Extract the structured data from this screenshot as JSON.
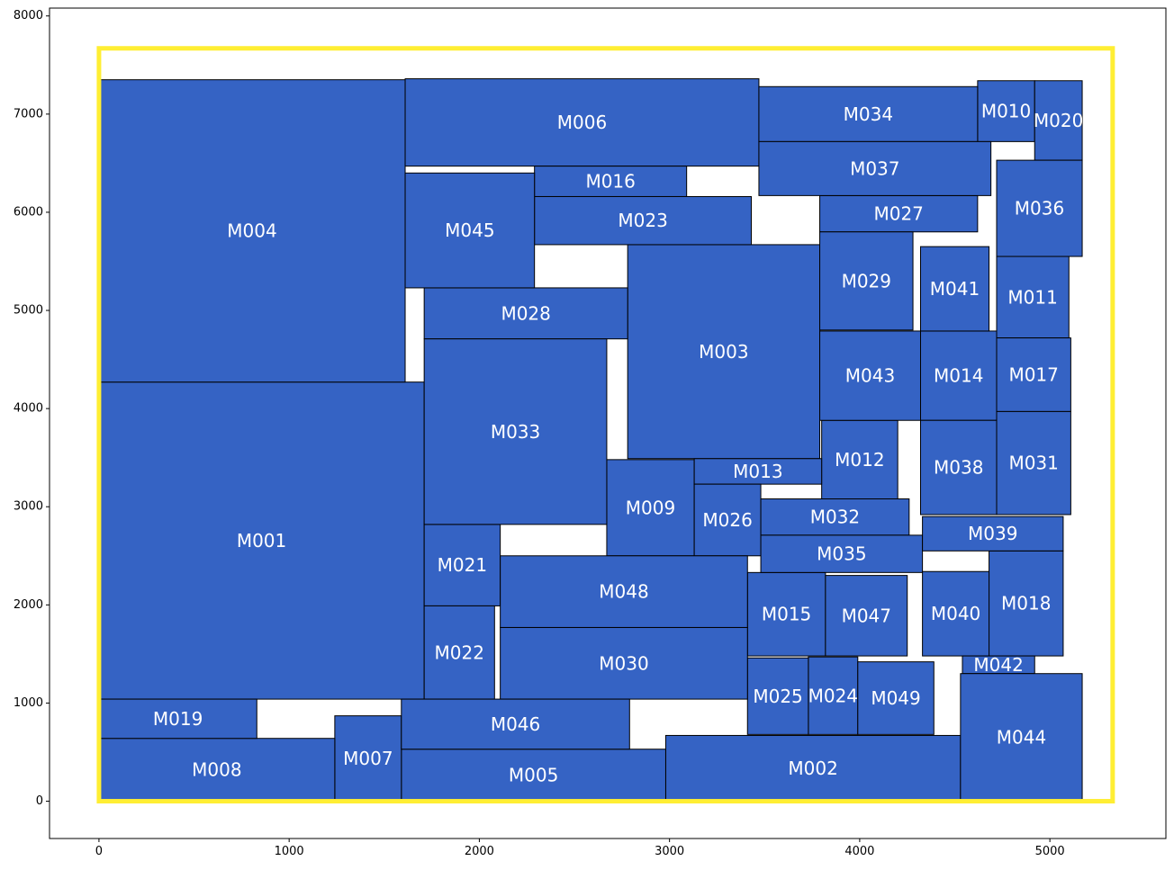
{
  "chart_data": {
    "type": "floorplan-rectangles",
    "xlim": [
      -260,
      5610
    ],
    "ylim": [
      -380,
      8080
    ],
    "xticks": [
      0,
      1000,
      2000,
      3000,
      4000,
      5000
    ],
    "yticks": [
      0,
      1000,
      2000,
      3000,
      4000,
      5000,
      6000,
      7000,
      8000
    ],
    "outline": {
      "x0": 0,
      "y0": 0,
      "x1": 5330,
      "y1": 7670,
      "color": "#ffee33"
    },
    "block_color": "#3563c4",
    "edge_color": "#000000",
    "label_color": "#ffffff",
    "blocks": [
      {
        "name": "M001",
        "x0": 0,
        "y0": 1040,
        "x1": 1710,
        "y1": 4270
      },
      {
        "name": "M002",
        "x0": 2980,
        "y0": 0,
        "x1": 4530,
        "y1": 670
      },
      {
        "name": "M003",
        "x0": 2780,
        "y0": 3490,
        "x1": 3790,
        "y1": 5670
      },
      {
        "name": "M004",
        "x0": 0,
        "y0": 4270,
        "x1": 1610,
        "y1": 7350
      },
      {
        "name": "M005",
        "x0": 1590,
        "y0": 0,
        "x1": 2980,
        "y1": 530
      },
      {
        "name": "M006",
        "x0": 1610,
        "y0": 6470,
        "x1": 3470,
        "y1": 7360
      },
      {
        "name": "M007",
        "x0": 1240,
        "y0": 0,
        "x1": 1590,
        "y1": 870
      },
      {
        "name": "M008",
        "x0": 0,
        "y0": 0,
        "x1": 1240,
        "y1": 640
      },
      {
        "name": "M009",
        "x0": 2670,
        "y0": 2500,
        "x1": 3130,
        "y1": 3480
      },
      {
        "name": "M010",
        "x0": 4620,
        "y0": 6720,
        "x1": 4920,
        "y1": 7340
      },
      {
        "name": "M011",
        "x0": 4720,
        "y0": 4720,
        "x1": 5100,
        "y1": 5550
      },
      {
        "name": "M012",
        "x0": 3800,
        "y0": 3080,
        "x1": 4200,
        "y1": 3880
      },
      {
        "name": "M013",
        "x0": 3130,
        "y0": 3230,
        "x1": 3800,
        "y1": 3490
      },
      {
        "name": "M014",
        "x0": 4320,
        "y0": 3880,
        "x1": 4720,
        "y1": 4790
      },
      {
        "name": "M015",
        "x0": 3410,
        "y0": 1480,
        "x1": 3820,
        "y1": 2330
      },
      {
        "name": "M016",
        "x0": 2290,
        "y0": 6160,
        "x1": 3090,
        "y1": 6470
      },
      {
        "name": "M017",
        "x0": 4720,
        "y0": 3970,
        "x1": 5110,
        "y1": 4720
      },
      {
        "name": "M018",
        "x0": 4680,
        "y0": 1480,
        "x1": 5070,
        "y1": 2550
      },
      {
        "name": "M019",
        "x0": 0,
        "y0": 640,
        "x1": 830,
        "y1": 1040
      },
      {
        "name": "M020",
        "x0": 4920,
        "y0": 6530,
        "x1": 5170,
        "y1": 7340
      },
      {
        "name": "M021",
        "x0": 1710,
        "y0": 1990,
        "x1": 2110,
        "y1": 2820
      },
      {
        "name": "M022",
        "x0": 1710,
        "y0": 1040,
        "x1": 2080,
        "y1": 1990
      },
      {
        "name": "M023",
        "x0": 2290,
        "y0": 5670,
        "x1": 3430,
        "y1": 6160
      },
      {
        "name": "M024",
        "x0": 3730,
        "y0": 680,
        "x1": 3990,
        "y1": 1470
      },
      {
        "name": "M025",
        "x0": 3410,
        "y0": 680,
        "x1": 3730,
        "y1": 1460
      },
      {
        "name": "M026",
        "x0": 3130,
        "y0": 2500,
        "x1": 3480,
        "y1": 3230
      },
      {
        "name": "M027",
        "x0": 3790,
        "y0": 5800,
        "x1": 4620,
        "y1": 6170
      },
      {
        "name": "M028",
        "x0": 1710,
        "y0": 4710,
        "x1": 2780,
        "y1": 5230
      },
      {
        "name": "M029",
        "x0": 3790,
        "y0": 4800,
        "x1": 4280,
        "y1": 5800
      },
      {
        "name": "M030",
        "x0": 2110,
        "y0": 1040,
        "x1": 3410,
        "y1": 1770
      },
      {
        "name": "M031",
        "x0": 4720,
        "y0": 2920,
        "x1": 5110,
        "y1": 3970
      },
      {
        "name": "M032",
        "x0": 3480,
        "y0": 2710,
        "x1": 4260,
        "y1": 3080
      },
      {
        "name": "M033",
        "x0": 1710,
        "y0": 2820,
        "x1": 2670,
        "y1": 4710
      },
      {
        "name": "M034",
        "x0": 3470,
        "y0": 6720,
        "x1": 4620,
        "y1": 7280
      },
      {
        "name": "M035",
        "x0": 3480,
        "y0": 2330,
        "x1": 4330,
        "y1": 2710
      },
      {
        "name": "M036",
        "x0": 4720,
        "y0": 5550,
        "x1": 5170,
        "y1": 6530
      },
      {
        "name": "M037",
        "x0": 3470,
        "y0": 6170,
        "x1": 4690,
        "y1": 6720
      },
      {
        "name": "M038",
        "x0": 4320,
        "y0": 2920,
        "x1": 4720,
        "y1": 3880
      },
      {
        "name": "M039",
        "x0": 4330,
        "y0": 2550,
        "x1": 5070,
        "y1": 2900
      },
      {
        "name": "M040",
        "x0": 4330,
        "y0": 1480,
        "x1": 4680,
        "y1": 2340
      },
      {
        "name": "M041",
        "x0": 4320,
        "y0": 4790,
        "x1": 4680,
        "y1": 5650
      },
      {
        "name": "M042",
        "x0": 4540,
        "y0": 1300,
        "x1": 4920,
        "y1": 1480
      },
      {
        "name": "M043",
        "x0": 3790,
        "y0": 3880,
        "x1": 4320,
        "y1": 4790
      },
      {
        "name": "M044",
        "x0": 4530,
        "y0": 0,
        "x1": 5170,
        "y1": 1300
      },
      {
        "name": "M045",
        "x0": 1610,
        "y0": 5230,
        "x1": 2290,
        "y1": 6400
      },
      {
        "name": "M046",
        "x0": 1590,
        "y0": 530,
        "x1": 2790,
        "y1": 1040
      },
      {
        "name": "M047",
        "x0": 3820,
        "y0": 1480,
        "x1": 4250,
        "y1": 2300
      },
      {
        "name": "M048",
        "x0": 2110,
        "y0": 1770,
        "x1": 3410,
        "y1": 2500
      },
      {
        "name": "M049",
        "x0": 3990,
        "y0": 680,
        "x1": 4390,
        "y1": 1420
      }
    ]
  }
}
